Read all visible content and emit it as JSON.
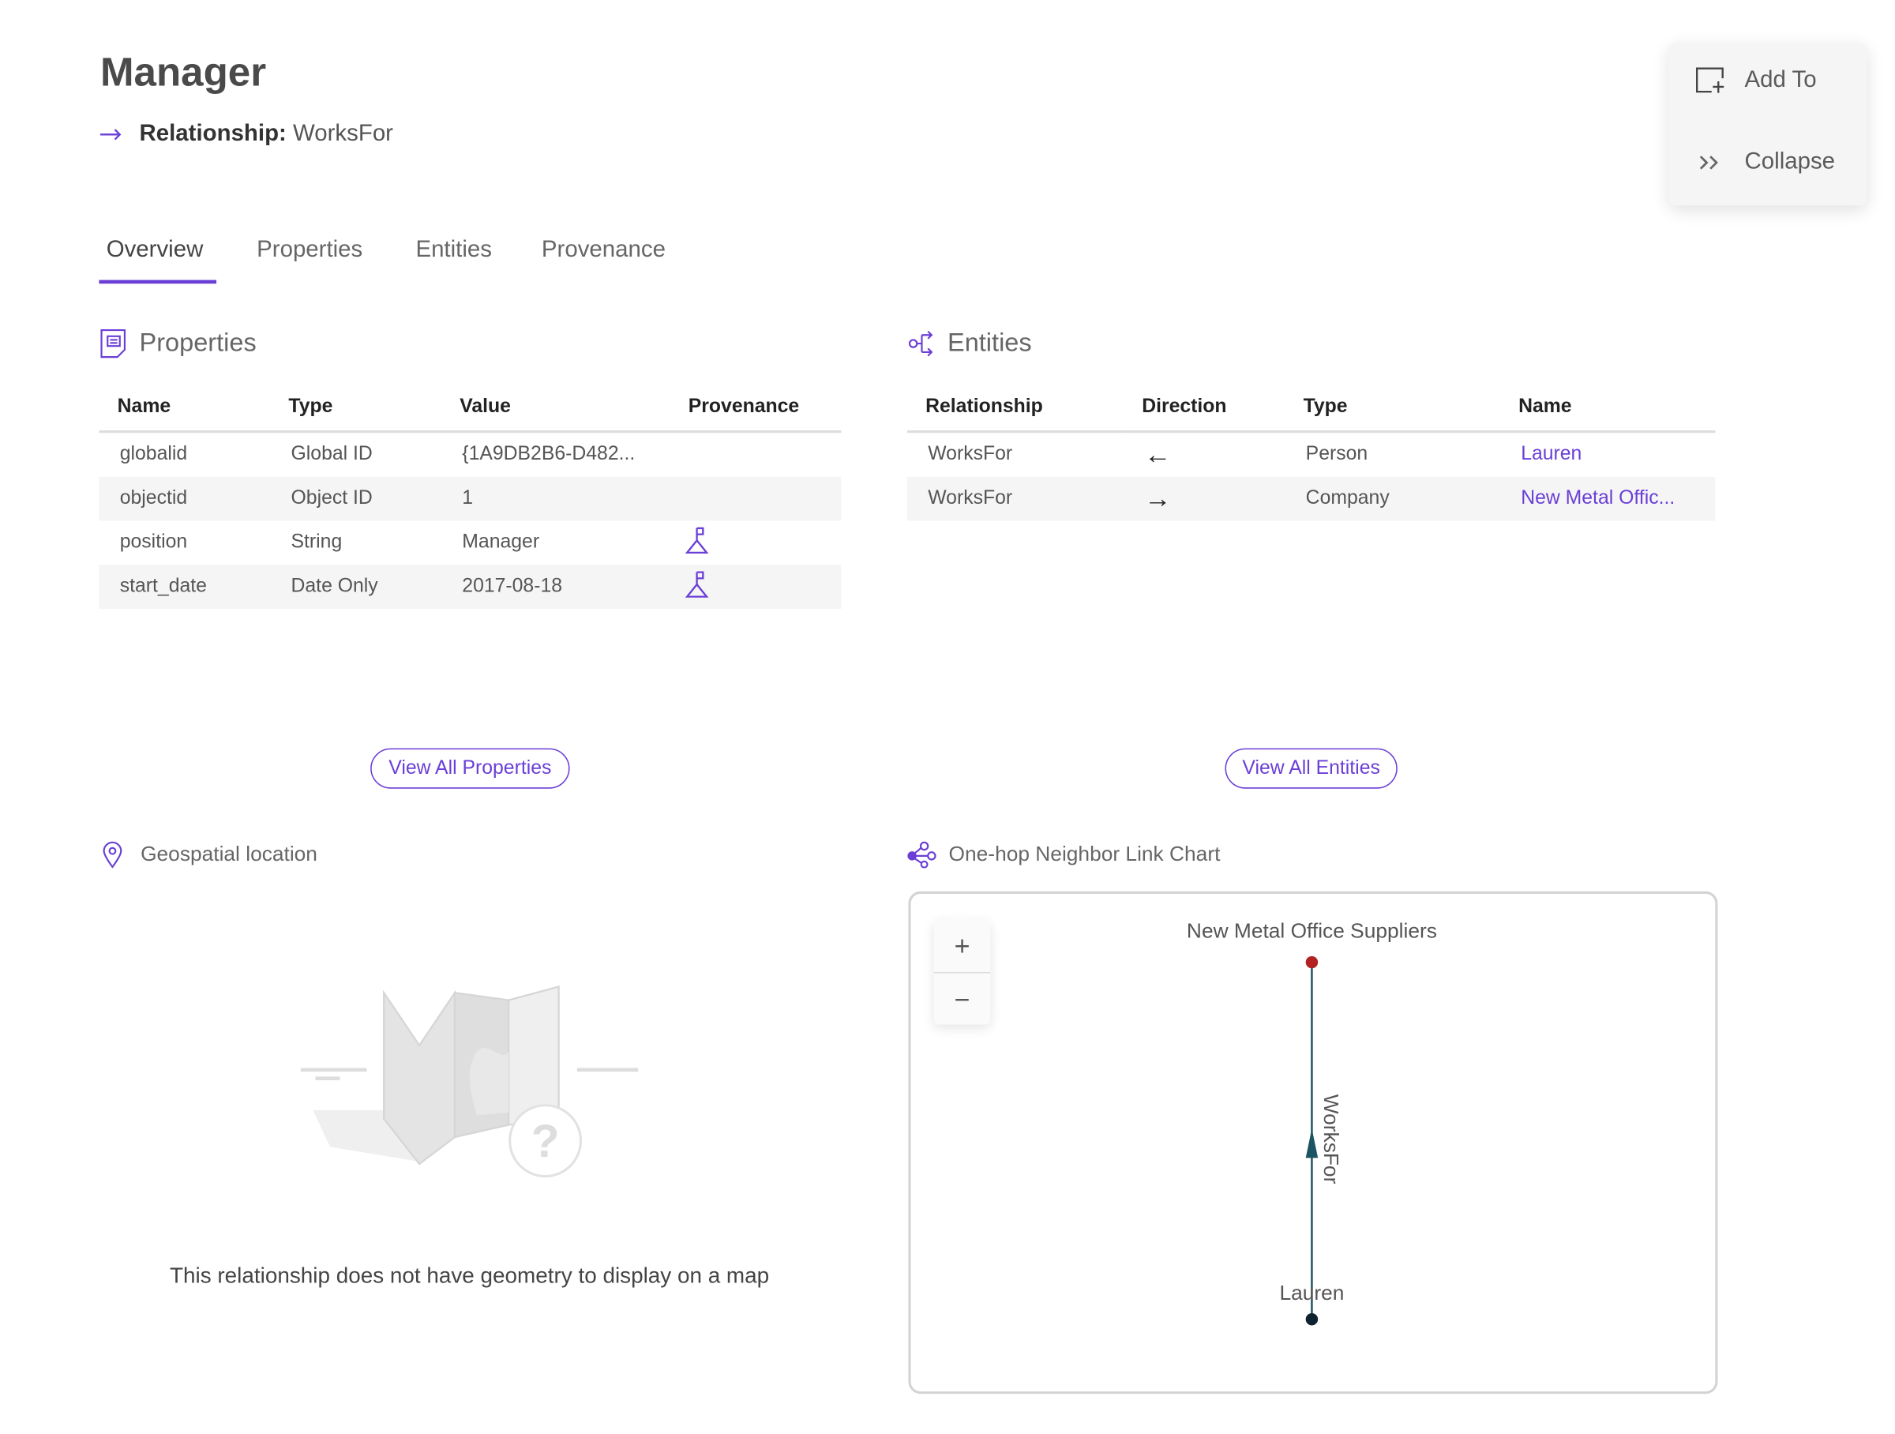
{
  "header": {
    "title": "Manager",
    "relationship_label": "Relationship:",
    "relationship_value": "WorksFor"
  },
  "tabs": [
    {
      "label": "Overview",
      "active": true
    },
    {
      "label": "Properties"
    },
    {
      "label": "Entities"
    },
    {
      "label": "Provenance"
    }
  ],
  "actions": {
    "add_to": "Add To",
    "collapse": "Collapse"
  },
  "properties": {
    "title": "Properties",
    "columns": [
      "Name",
      "Type",
      "Value",
      "Provenance"
    ],
    "rows": [
      {
        "name": "globalid",
        "type": "Global ID",
        "value": "{1A9DB2B6-D482...",
        "provenance": false
      },
      {
        "name": "objectid",
        "type": "Object ID",
        "value": "1",
        "provenance": false
      },
      {
        "name": "position",
        "type": "String",
        "value": "Manager",
        "provenance": true
      },
      {
        "name": "start_date",
        "type": "Date Only",
        "value": "2017-08-18",
        "provenance": true
      }
    ],
    "view_all": "View All Properties"
  },
  "entities": {
    "title": "Entities",
    "columns": [
      "Relationship",
      "Direction",
      "Type",
      "Name"
    ],
    "rows": [
      {
        "relationship": "WorksFor",
        "direction": "←",
        "type": "Person",
        "name": "Lauren"
      },
      {
        "relationship": "WorksFor",
        "direction": "→",
        "type": "Company",
        "name": "New Metal Offic..."
      }
    ],
    "view_all": "View All Entities"
  },
  "geospatial": {
    "title": "Geospatial location",
    "message": "This relationship does not have geometry to display on a map"
  },
  "link_chart": {
    "title": "One-hop Neighbor Link Chart",
    "zoom_in": "+",
    "zoom_out": "−",
    "nodes": [
      {
        "label": "New Metal Office Suppliers",
        "color": "#b22222"
      },
      {
        "label": "Lauren",
        "color": "#0f2230"
      }
    ],
    "edge": {
      "label": "WorksFor",
      "from": "Lauren",
      "to": "New Metal Office Suppliers",
      "color": "#1b5563"
    }
  },
  "colors": {
    "accent": "#6a3fd6"
  }
}
